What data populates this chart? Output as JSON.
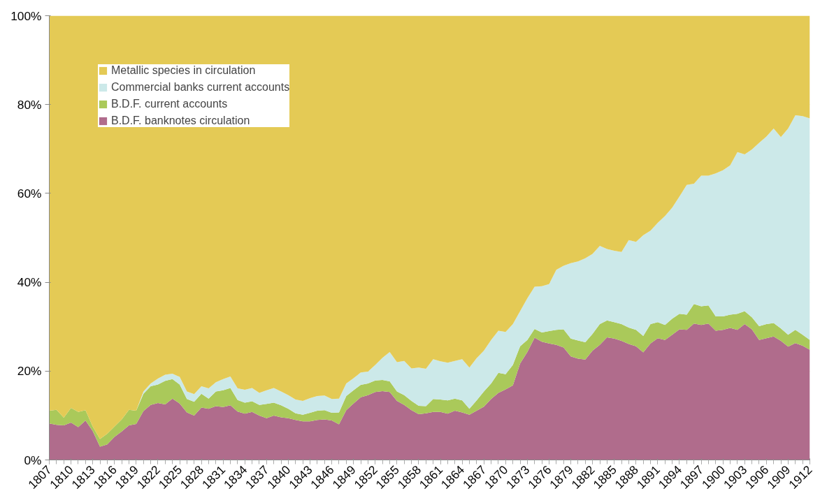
{
  "chart_data": {
    "type": "area",
    "stacked": true,
    "x": [
      1807,
      1808,
      1809,
      1810,
      1811,
      1812,
      1813,
      1814,
      1815,
      1816,
      1817,
      1818,
      1819,
      1820,
      1821,
      1822,
      1823,
      1824,
      1825,
      1826,
      1827,
      1828,
      1829,
      1830,
      1831,
      1832,
      1833,
      1834,
      1835,
      1836,
      1837,
      1838,
      1839,
      1840,
      1841,
      1842,
      1843,
      1844,
      1845,
      1846,
      1847,
      1848,
      1849,
      1850,
      1851,
      1852,
      1853,
      1854,
      1855,
      1856,
      1857,
      1858,
      1859,
      1860,
      1861,
      1862,
      1863,
      1864,
      1865,
      1866,
      1867,
      1868,
      1869,
      1870,
      1871,
      1872,
      1873,
      1874,
      1875,
      1876,
      1877,
      1878,
      1879,
      1880,
      1881,
      1882,
      1883,
      1884,
      1885,
      1886,
      1887,
      1888,
      1889,
      1890,
      1891,
      1892,
      1893,
      1894,
      1895,
      1896,
      1897,
      1898,
      1899,
      1900,
      1901,
      1902,
      1903,
      1904,
      1905,
      1906,
      1907,
      1908,
      1909,
      1910,
      1911,
      1912
    ],
    "series": [
      {
        "name": "B.D.F. banknotes circulation",
        "color": "#b06c8c",
        "values": [
          8.2,
          7.9,
          7.8,
          8.4,
          7.4,
          8.9,
          6.5,
          3.0,
          3.5,
          5.2,
          6.4,
          7.8,
          8.1,
          11.0,
          12.4,
          12.8,
          12.5,
          13.8,
          12.7,
          10.7,
          10.0,
          11.8,
          11.5,
          12.1,
          11.9,
          12.3,
          10.9,
          10.4,
          10.8,
          10.0,
          9.4,
          10.0,
          9.6,
          9.4,
          9.0,
          8.7,
          8.7,
          9.0,
          9.1,
          8.9,
          8.0,
          11.2,
          12.7,
          14.1,
          14.6,
          15.3,
          15.5,
          15.3,
          13.3,
          12.4,
          11.2,
          10.3,
          10.5,
          10.8,
          10.8,
          10.4,
          11.1,
          10.7,
          10.2,
          11.1,
          12.0,
          13.7,
          15.1,
          15.9,
          16.8,
          21.7,
          24.3,
          27.5,
          26.6,
          26.2,
          25.9,
          25.3,
          23.3,
          22.8,
          22.6,
          24.6,
          25.9,
          27.6,
          27.3,
          26.8,
          26.1,
          25.6,
          24.2,
          26.2,
          27.4,
          27.0,
          28.2,
          29.4,
          29.3,
          30.7,
          30.4,
          30.7,
          29.1,
          29.3,
          29.7,
          29.3,
          30.6,
          29.4,
          27.0,
          27.4,
          27.8,
          26.8,
          25.5,
          26.3,
          25.7,
          24.8
        ]
      },
      {
        "name": "B.D.F. current accounts",
        "color": "#aac95a",
        "values": [
          2.9,
          3.4,
          1.7,
          3.3,
          3.4,
          2.3,
          1.0,
          1.7,
          2.4,
          2.3,
          2.7,
          3.5,
          3.0,
          3.9,
          4.2,
          4.2,
          5.3,
          4.4,
          4.3,
          3.0,
          3.1,
          3.1,
          2.3,
          3.3,
          3.8,
          3.9,
          2.6,
          2.5,
          2.4,
          2.4,
          3.2,
          2.9,
          2.7,
          2.1,
          1.5,
          1.5,
          1.9,
          2.1,
          2.1,
          1.7,
          2.7,
          3.2,
          3.0,
          2.8,
          2.6,
          2.6,
          2.5,
          2.4,
          2.1,
          2.2,
          2.1,
          1.9,
          1.6,
          2.9,
          2.8,
          3.0,
          2.7,
          2.7,
          1.3,
          2.3,
          3.4,
          3.5,
          4.5,
          3.4,
          4.6,
          3.9,
          2.7,
          2.0,
          2.1,
          2.8,
          3.4,
          4.1,
          4.0,
          4.1,
          3.9,
          3.8,
          4.7,
          3.8,
          3.7,
          3.8,
          3.7,
          3.7,
          3.7,
          4.4,
          3.6,
          3.4,
          3.6,
          3.5,
          3.4,
          4.4,
          4.2,
          4.1,
          3.2,
          3.0,
          3.0,
          3.6,
          2.9,
          2.7,
          3.1,
          3.2,
          3.0,
          2.8,
          2.7,
          3.0,
          2.5,
          2.2
        ]
      },
      {
        "name": "Commercial banks current accounts",
        "color": "#cce9e9",
        "values": [
          0,
          0,
          0,
          0,
          0,
          0,
          0,
          0,
          0,
          0,
          0,
          0,
          0,
          0.5,
          0.6,
          1.3,
          1.4,
          1.2,
          1.7,
          1.7,
          1.7,
          1.7,
          2.3,
          2.1,
          2.5,
          2.6,
          2.6,
          2.9,
          3.0,
          2.7,
          3.1,
          3.3,
          3.1,
          3.1,
          3.1,
          3.1,
          3.3,
          3.3,
          3.3,
          3.1,
          3.1,
          2.8,
          2.7,
          2.8,
          2.7,
          3.5,
          5.0,
          6.6,
          6.6,
          7.7,
          7.3,
          8.6,
          8.4,
          9.0,
          8.6,
          8.5,
          8.5,
          9.3,
          9.3,
          9.5,
          9.2,
          9.8,
          9.5,
          9.5,
          9.2,
          7.9,
          9.4,
          9.5,
          10.4,
          10.6,
          13.5,
          14.3,
          17.0,
          17.8,
          18.9,
          18.0,
          17.6,
          16.1,
          16.1,
          16.2,
          19.7,
          19.8,
          22.7,
          21.0,
          22.4,
          24.5,
          25.0,
          26.4,
          29.2,
          27.1,
          29.4,
          29.2,
          32.2,
          32.9,
          33.6,
          36.4,
          35.3,
          37.8,
          41.3,
          42.2,
          43.8,
          43.1,
          46.4,
          48.3,
          49.2,
          49.9
        ]
      },
      {
        "name": "Metallic species in circulation",
        "color": "#e4ca55",
        "values": [
          88.9,
          88.7,
          90.5,
          88.3,
          89.2,
          88.8,
          92.5,
          95.3,
          94.1,
          92.5,
          90.9,
          88.7,
          88.9,
          84.6,
          82.8,
          81.7,
          80.8,
          80.6,
          81.3,
          84.6,
          85.2,
          83.4,
          83.9,
          82.5,
          81.8,
          81.2,
          83.9,
          84.2,
          83.8,
          84.9,
          84.3,
          83.8,
          84.6,
          85.4,
          86.4,
          86.7,
          86.1,
          85.6,
          85.5,
          86.3,
          86.2,
          82.8,
          81.6,
          80.3,
          80.1,
          78.6,
          77.0,
          75.7,
          78.0,
          77.7,
          79.4,
          79.2,
          79.5,
          77.3,
          77.8,
          78.1,
          77.7,
          77.3,
          79.2,
          77.1,
          75.4,
          73.0,
          70.9,
          71.2,
          69.4,
          66.5,
          63.6,
          61.0,
          60.9,
          60.4,
          57.2,
          56.3,
          55.7,
          55.3,
          54.6,
          53.6,
          51.8,
          52.5,
          52.9,
          53.2,
          50.5,
          50.9,
          49.4,
          48.4,
          46.6,
          45.1,
          43.2,
          40.7,
          38.1,
          37.8,
          36.0,
          36.0,
          35.5,
          34.8,
          33.7,
          30.7,
          31.2,
          30.1,
          28.6,
          27.2,
          25.4,
          27.3,
          25.4,
          22.4,
          22.6,
          23.1
        ]
      }
    ],
    "xlim": [
      1807,
      1912
    ],
    "xticks": [
      1807,
      1810,
      1813,
      1816,
      1819,
      1822,
      1825,
      1828,
      1831,
      1834,
      1837,
      1840,
      1843,
      1846,
      1849,
      1852,
      1855,
      1858,
      1861,
      1864,
      1867,
      1870,
      1873,
      1876,
      1879,
      1882,
      1885,
      1888,
      1891,
      1894,
      1897,
      1900,
      1903,
      1906,
      1909,
      1912
    ],
    "ylim": [
      0,
      100
    ],
    "yticks": [
      {
        "value": 0,
        "label": "0%"
      },
      {
        "value": 20,
        "label": "20%"
      },
      {
        "value": 40,
        "label": "40%"
      },
      {
        "value": 60,
        "label": "60%"
      },
      {
        "value": 80,
        "label": "80%"
      },
      {
        "value": 100,
        "label": "100%"
      }
    ],
    "grid": "y",
    "legend": "top left"
  }
}
